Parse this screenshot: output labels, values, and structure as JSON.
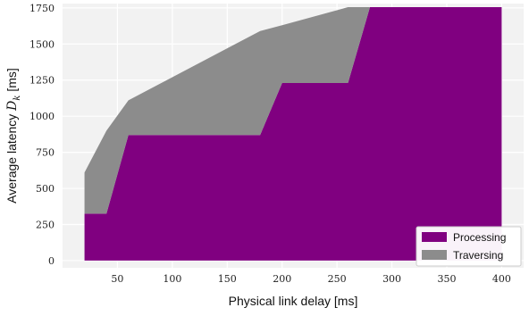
{
  "chart_data": {
    "type": "area",
    "stacked": true,
    "xlabel": "Physical link delay [ms]",
    "ylabel": "Average latency D_k [ms]",
    "ylabel_prefix": "Average latency ",
    "ylabel_symbol": "D",
    "ylabel_subscript": "k",
    "ylabel_suffix": " [ms]",
    "xlim": [
      0,
      420
    ],
    "ylim": [
      -50,
      1780
    ],
    "xticks": [
      50,
      100,
      150,
      200,
      250,
      300,
      350,
      400
    ],
    "yticks": [
      0,
      250,
      500,
      750,
      1000,
      1250,
      1500,
      1750
    ],
    "grid": true,
    "legend_position": "lower-right",
    "x": [
      20,
      40,
      60,
      180,
      200,
      260,
      280,
      400
    ],
    "series": [
      {
        "name": "Processing",
        "color": "#800080",
        "values": [
          325,
          325,
          870,
          870,
          1230,
          1230,
          1755,
          1755
        ]
      },
      {
        "name": "Traversing",
        "color": "#8c8c8c",
        "values": [
          285,
          575,
          240,
          720,
          400,
          525,
          0,
          0
        ]
      }
    ]
  }
}
